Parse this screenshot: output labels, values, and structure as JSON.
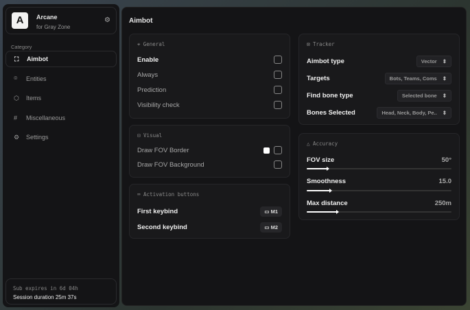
{
  "brand": {
    "logo": "A",
    "name": "Arcane",
    "subtitle": "for Gray Zone",
    "settings_icon": "gear-icon"
  },
  "sidebar": {
    "category_label": "Category",
    "items": [
      {
        "label": "Aimbot",
        "icon": "crosshair-icon",
        "glyph": "⛶",
        "active": true
      },
      {
        "label": "Entities",
        "icon": "user-scan-icon",
        "glyph": "⌾",
        "active": false
      },
      {
        "label": "Items",
        "icon": "box-icon",
        "glyph": "⬡",
        "active": false
      },
      {
        "label": "Miscellaneous",
        "icon": "hash-icon",
        "glyph": "#",
        "active": false
      },
      {
        "label": "Settings",
        "icon": "gear-icon",
        "glyph": "⚙",
        "active": false
      }
    ],
    "sub_expires": "Sub expires in 6d 04h",
    "session": "Session duration 25m 37s"
  },
  "main": {
    "title": "Aimbot",
    "general": {
      "title": "General",
      "items": [
        {
          "label": "Enable",
          "checked": false
        },
        {
          "label": "Always",
          "checked": false
        },
        {
          "label": "Prediction",
          "checked": false
        },
        {
          "label": "Visibility check",
          "checked": false
        }
      ]
    },
    "visual": {
      "title": "Visual",
      "items": [
        {
          "label": "Draw FOV Border",
          "checked": false,
          "color": "#ffffff"
        },
        {
          "label": "Draw FOV Background",
          "checked": false
        }
      ]
    },
    "activation": {
      "title": "Activation buttons",
      "items": [
        {
          "label": "First keybind",
          "key": "M1"
        },
        {
          "label": "Second keybind",
          "key": "M2"
        }
      ]
    },
    "tracker": {
      "title": "Tracker",
      "items": [
        {
          "label": "Aimbot type",
          "value": "Vector"
        },
        {
          "label": "Targets",
          "value": "Bots, Teams, Coms"
        },
        {
          "label": "Find bone type",
          "value": "Selected bone"
        },
        {
          "label": "Bones Selected",
          "value": "Head, Neck, Body, Pe.."
        }
      ]
    },
    "accuracy": {
      "title": "Accuracy",
      "items": [
        {
          "label": "FOV size",
          "value": "50°",
          "fraction": 0.14
        },
        {
          "label": "Smoothness",
          "value": "15.0",
          "fraction": 0.16
        },
        {
          "label": "Max distance",
          "value": "250m",
          "fraction": 0.21
        }
      ]
    }
  }
}
